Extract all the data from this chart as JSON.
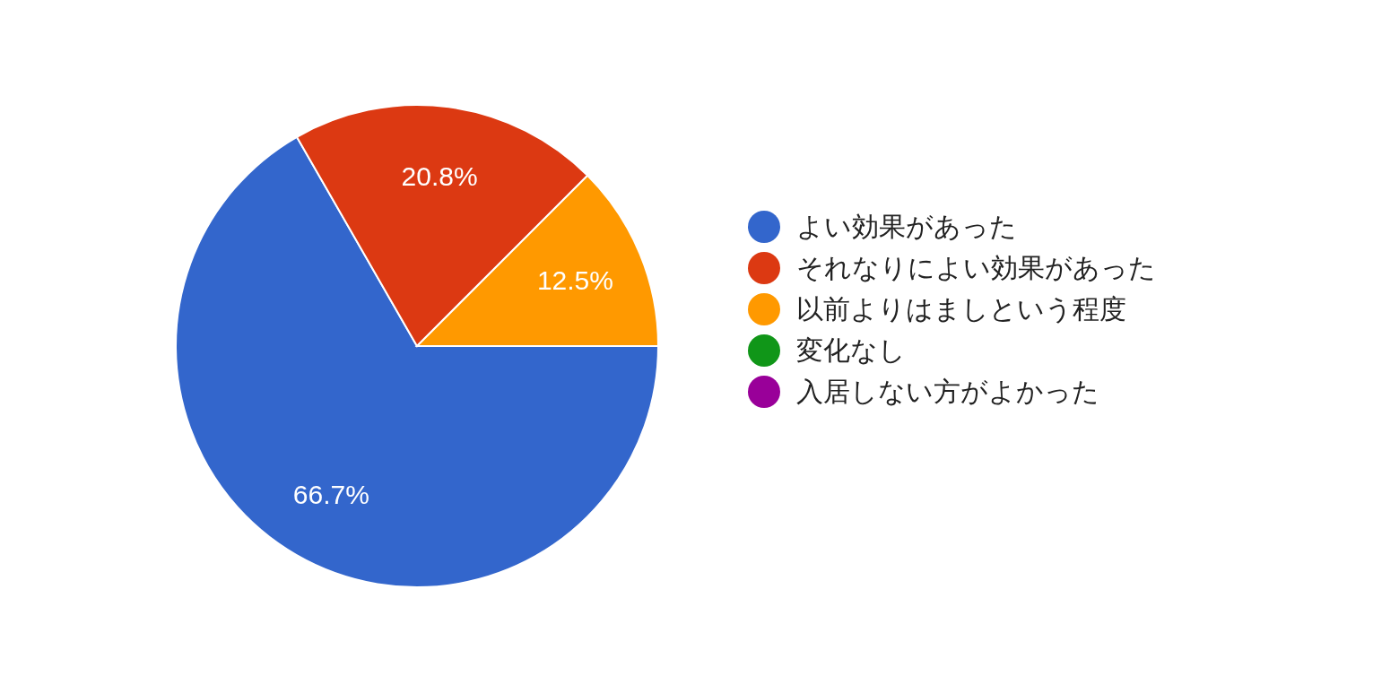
{
  "chart_data": {
    "type": "pie",
    "categories": [
      "よい効果があった",
      "それなりによい効果があった",
      "以前よりはましという程度",
      "変化なし",
      "入居しない方がよかった"
    ],
    "values": [
      66.7,
      20.8,
      12.5,
      0,
      0
    ],
    "colors": [
      "#3366cc",
      "#dc3912",
      "#ff9900",
      "#109618",
      "#990099"
    ],
    "value_labels": [
      "66.7%",
      "20.8%",
      "12.5%",
      null,
      null
    ],
    "legend": "right"
  }
}
